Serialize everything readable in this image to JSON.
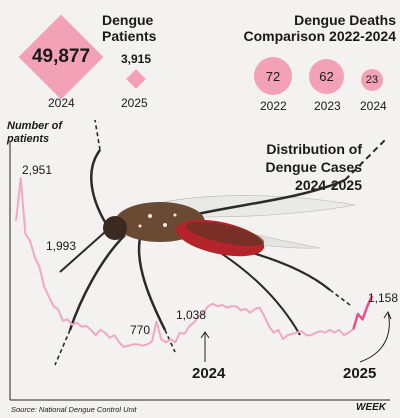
{
  "patients": {
    "title": "Dengue Patients",
    "items": [
      {
        "year": "2024",
        "value": "49,877"
      },
      {
        "year": "2025",
        "value": "3,915"
      }
    ]
  },
  "deaths": {
    "title": "Dengue Deaths Comparison 2022-2024",
    "items": [
      {
        "year": "2022",
        "value": "72"
      },
      {
        "year": "2023",
        "value": "62"
      },
      {
        "year": "2024",
        "value": "23"
      }
    ]
  },
  "chart_data": {
    "type": "line",
    "title": "Distribution of Dengue Cases 2024-2025",
    "ylabel": "Number of patients",
    "xlabel": "WEEK",
    "source": "Source: National Dengue Control Unit",
    "colors": {
      "line_2024": "#f2a8c0",
      "line_2025": "#e8508a"
    },
    "series": [
      {
        "name": "2024",
        "values": [
          2300,
          2951,
          2100,
          1993,
          1750,
          1600,
          1300,
          1150,
          1000,
          950,
          780,
          800,
          720,
          750,
          690,
          700,
          640,
          560,
          640,
          600,
          520,
          560,
          450,
          380,
          400,
          420,
          420,
          400,
          420,
          460,
          770,
          500,
          450,
          500,
          450,
          600,
          580,
          700,
          750,
          850,
          900,
          1000,
          1038,
          1000,
          1020,
          980,
          1000,
          1000,
          940,
          960,
          900,
          960,
          980,
          850,
          700,
          600,
          640,
          500,
          560,
          580,
          600,
          620,
          560,
          560,
          600,
          620,
          600,
          640,
          600,
          640,
          560,
          600,
          650
        ]
      },
      {
        "name": "2025",
        "values": [
          650,
          880,
          800,
          1000,
          1158
        ]
      }
    ],
    "annotations": {
      "peak": "2,951",
      "early": "1,993",
      "mid": "770",
      "high": "1,038",
      "last": "1,158",
      "label_2024": "2024",
      "label_2025": "2025"
    }
  }
}
